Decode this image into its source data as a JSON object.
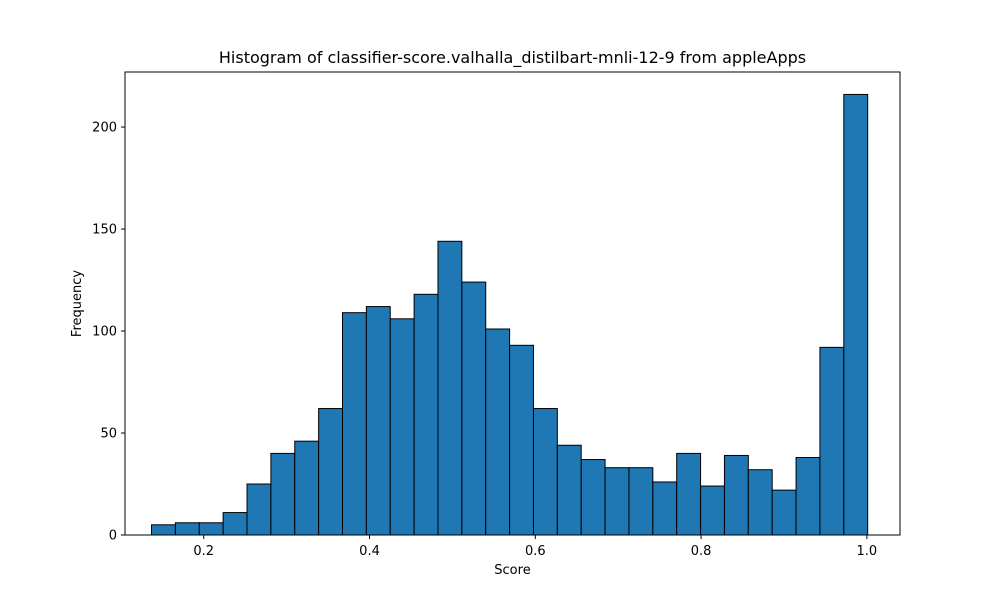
{
  "chart_data": {
    "type": "bar",
    "title": "Histogram of classifier-score.valhalla_distilbart-mnli-12-9 from appleApps",
    "xlabel": "Score",
    "ylabel": "Frequency",
    "xlim": [
      0.105,
      1.04
    ],
    "ylim": [
      0,
      227
    ],
    "xticks": [
      "0.2",
      "0.4",
      "0.6",
      "0.8",
      "1.0"
    ],
    "yticks": [
      "0",
      "50",
      "100",
      "150",
      "200"
    ],
    "grid": false,
    "bar_color": "#1f77b4",
    "edge_color": "#000000",
    "bin_start": 0.137,
    "bin_width": 0.0288,
    "values": [
      5,
      6,
      6,
      11,
      25,
      40,
      46,
      62,
      109,
      112,
      106,
      118,
      144,
      124,
      101,
      93,
      62,
      44,
      37,
      33,
      33,
      26,
      40,
      24,
      39,
      32,
      22,
      38,
      92,
      216
    ]
  }
}
